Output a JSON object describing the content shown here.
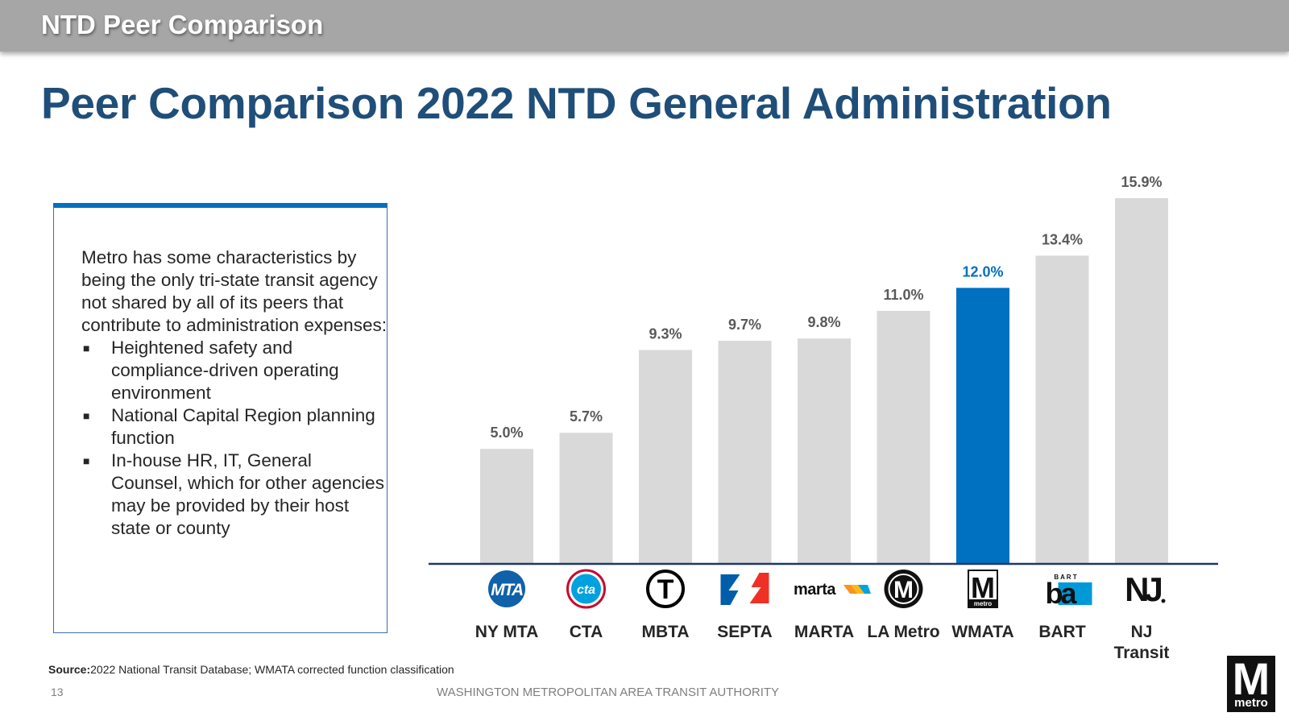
{
  "header": {
    "section": "NTD Peer Comparison"
  },
  "title": "Peer Comparison 2022 NTD General Administration",
  "textbox": {
    "intro": "Metro has some characteristics by being the only tri-state transit agency not shared by all of its peers that contribute to administration expenses:",
    "bullets": [
      "Heightened safety and compliance-driven operating environment",
      "National Capital Region planning function",
      "In-house HR, IT, General Counsel, which for other agencies may be provided by their host state or county"
    ]
  },
  "chart_data": {
    "type": "bar",
    "categories": [
      "NY MTA",
      "CTA",
      "MBTA",
      "SEPTA",
      "MARTA",
      "LA Metro",
      "WMATA",
      "BART",
      "NJ Transit"
    ],
    "values": [
      5.0,
      5.7,
      9.3,
      9.7,
      9.8,
      11.0,
      12.0,
      13.4,
      15.9
    ],
    "data_labels": [
      "5.0%",
      "5.7%",
      "9.3%",
      "9.7%",
      "9.8%",
      "11.0%",
      "12.0%",
      "13.4%",
      "15.9%"
    ],
    "logo_icons": [
      "mta-logo-icon",
      "cta-logo-icon",
      "mbta-logo-icon",
      "septa-logo-icon",
      "marta-logo-icon",
      "la-metro-logo-icon",
      "wmata-logo-icon",
      "bart-logo-icon",
      "nj-transit-logo-icon"
    ],
    "highlight_category": "WMATA",
    "colors": {
      "default_bar": "#d9d9d9",
      "highlight_bar": "#0070c0",
      "label": "#595959",
      "highlight_label": "#0070c0",
      "axis": "#1f3864"
    },
    "ylim": [
      0,
      16.5
    ],
    "grid": false,
    "legend": "none"
  },
  "logo_text": {
    "mta": "MTA",
    "cta": "cta",
    "mbta": "T",
    "marta": "marta",
    "la_metro": "M",
    "wmata_m": "M",
    "wmata_sub": "metro",
    "bart_top": "B A R T",
    "bart_main": "ba",
    "nj": "NJ"
  },
  "footer": {
    "source_label": "Source:",
    "source_text": "2022 National Transit Database; WMATA corrected function classification",
    "page": "13",
    "org": "WASHINGTON METROPOLITAN AREA TRANSIT AUTHORITY",
    "logo_m": "M",
    "logo_word": "metro"
  }
}
